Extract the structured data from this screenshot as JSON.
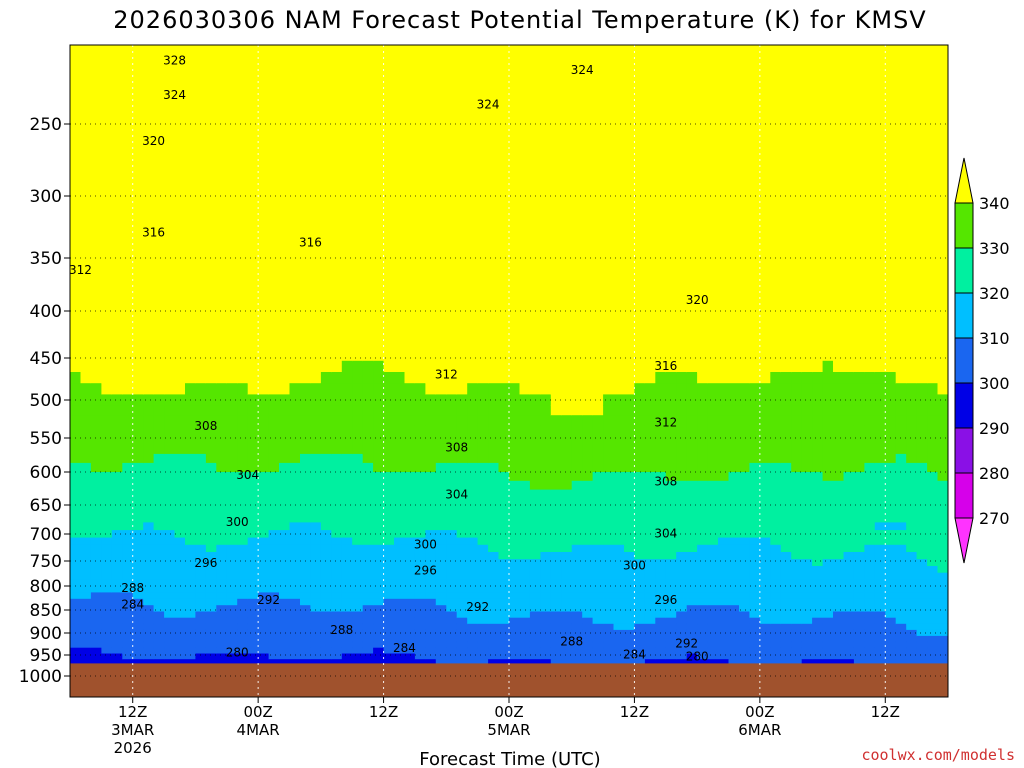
{
  "chart_data": {
    "type": "heatmap",
    "title": "2026030306 NAM Forecast Potential Temperature (K) for KMSV",
    "xlabel": "Forecast Time (UTC)",
    "ylabel": "",
    "y_scale": "pressure (reversed)",
    "y_ticks": [
      250,
      300,
      350,
      400,
      450,
      500,
      550,
      600,
      650,
      700,
      750,
      800,
      850,
      900,
      950,
      1000
    ],
    "ylim": [
      1000,
      200
    ],
    "x_ticks": [
      {
        "hour": 6,
        "line1": "12Z",
        "line2": "3MAR",
        "line3": "2026"
      },
      {
        "hour": 18,
        "line1": "00Z",
        "line2": "4MAR",
        "line3": ""
      },
      {
        "hour": 30,
        "line1": "12Z",
        "line2": "",
        "line3": ""
      },
      {
        "hour": 42,
        "line1": "00Z",
        "line2": "5MAR",
        "line3": ""
      },
      {
        "hour": 54,
        "line1": "12Z",
        "line2": "",
        "line3": ""
      },
      {
        "hour": 66,
        "line1": "00Z",
        "line2": "6MAR",
        "line3": ""
      },
      {
        "hour": 78,
        "line1": "12Z",
        "line2": "",
        "line3": ""
      }
    ],
    "xlim": [
      0,
      84
    ],
    "grid": true,
    "colorbar": {
      "levels": [
        270,
        280,
        290,
        300,
        310,
        320,
        330,
        340
      ],
      "colors": [
        "#ff33ff",
        "#d600ea",
        "#8a10e6",
        "#0000e6",
        "#1a66f0",
        "#00bfff",
        "#00f0a0",
        "#55e600",
        "#ffff00"
      ]
    },
    "contour_labels": [
      {
        "value": "328",
        "x": 10,
        "p": 210
      },
      {
        "value": "324",
        "x": 10,
        "p": 232
      },
      {
        "value": "320",
        "x": 8,
        "p": 262
      },
      {
        "value": "316",
        "x": 8,
        "p": 330
      },
      {
        "value": "312",
        "x": 1,
        "p": 362
      },
      {
        "value": "316",
        "x": 23,
        "p": 338
      },
      {
        "value": "324",
        "x": 40,
        "p": 238
      },
      {
        "value": "324",
        "x": 49,
        "p": 216
      },
      {
        "value": "320",
        "x": 60,
        "p": 390
      },
      {
        "value": "312",
        "x": 36,
        "p": 470
      },
      {
        "value": "316",
        "x": 57,
        "p": 460
      },
      {
        "value": "312",
        "x": 57,
        "p": 530
      },
      {
        "value": "308",
        "x": 13,
        "p": 535
      },
      {
        "value": "308",
        "x": 37,
        "p": 565
      },
      {
        "value": "308",
        "x": 57,
        "p": 615
      },
      {
        "value": "304",
        "x": 17,
        "p": 605
      },
      {
        "value": "304",
        "x": 37,
        "p": 635
      },
      {
        "value": "304",
        "x": 57,
        "p": 700
      },
      {
        "value": "300",
        "x": 16,
        "p": 680
      },
      {
        "value": "300",
        "x": 34,
        "p": 720
      },
      {
        "value": "300",
        "x": 54,
        "p": 760
      },
      {
        "value": "296",
        "x": 13,
        "p": 755
      },
      {
        "value": "296",
        "x": 34,
        "p": 770
      },
      {
        "value": "296",
        "x": 57,
        "p": 830
      },
      {
        "value": "292",
        "x": 19,
        "p": 830
      },
      {
        "value": "292",
        "x": 39,
        "p": 845
      },
      {
        "value": "292",
        "x": 59,
        "p": 925
      },
      {
        "value": "288",
        "x": 6,
        "p": 805
      },
      {
        "value": "288",
        "x": 26,
        "p": 895
      },
      {
        "value": "288",
        "x": 48,
        "p": 920
      },
      {
        "value": "284",
        "x": 6,
        "p": 840
      },
      {
        "value": "284",
        "x": 32,
        "p": 935
      },
      {
        "value": "284",
        "x": 54,
        "p": 950
      },
      {
        "value": "280",
        "x": 16,
        "p": 945
      },
      {
        "value": "280",
        "x": 60,
        "p": 955
      }
    ],
    "ground": "below 970 hPa"
  },
  "credit": "coolwx.com/models"
}
